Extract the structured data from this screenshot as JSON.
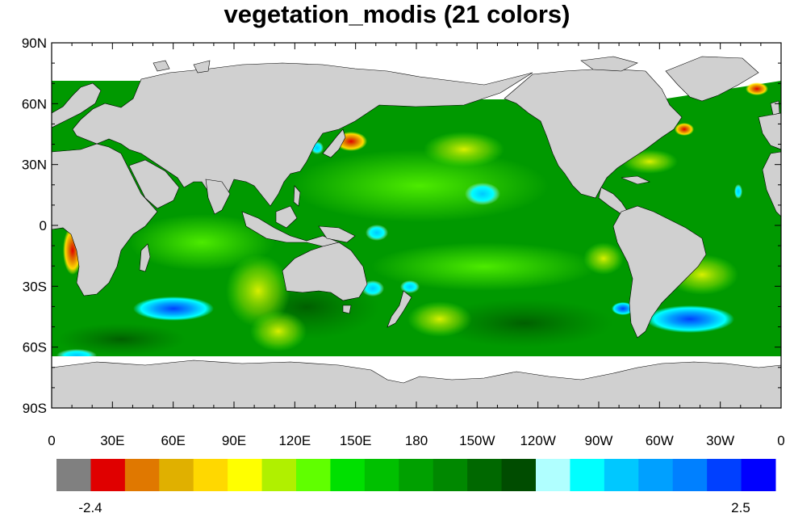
{
  "title": "vegetation_modis (21 colors)",
  "map": {
    "lat_ticks": [
      "90N",
      "60N",
      "30N",
      "0",
      "30S",
      "60S",
      "90S"
    ],
    "lon_ticks": [
      "0",
      "30E",
      "60E",
      "90E",
      "120E",
      "150E",
      "180",
      "150W",
      "120W",
      "90W",
      "60W",
      "30W",
      "0"
    ],
    "land_color": "#d0d0d0",
    "ocean_base_color": "#009900"
  },
  "colorbar": {
    "colors": [
      "#808080",
      "#e00000",
      "#e07800",
      "#e0b000",
      "#ffd800",
      "#ffff00",
      "#b0f000",
      "#60ff00",
      "#00e000",
      "#00c000",
      "#00a000",
      "#008800",
      "#006800",
      "#004c00",
      "#b0ffff",
      "#00ffff",
      "#00c8ff",
      "#00a0ff",
      "#0080ff",
      "#0040ff",
      "#0000ff"
    ],
    "min_label": "-2.4",
    "max_label": "2.5"
  }
}
